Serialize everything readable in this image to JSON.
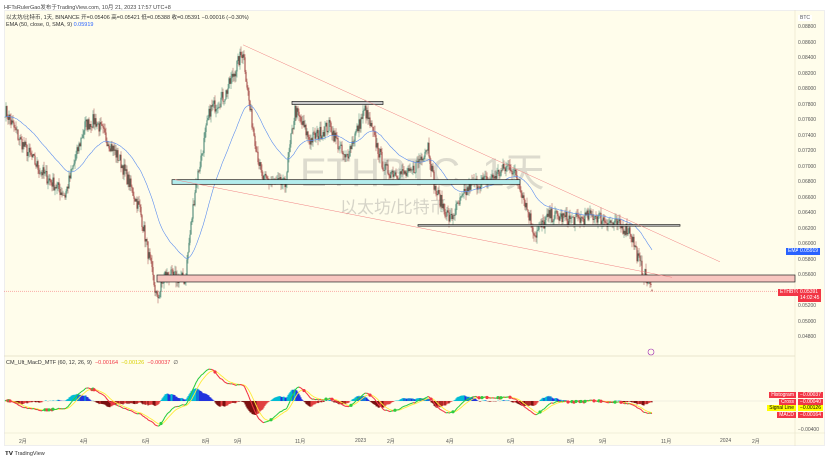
{
  "header": {
    "text": "HFTsRulerGao发布于TradingView.com, 10月 21, 2023 17:57 UTC+8"
  },
  "legend": {
    "line1": "以太坊/比特币, 1天, BINANCE  开=0.05406  高=0.05421  低=0.05388  收=0.05391  −0.00016 (−0.30%)",
    "ema_label": "EMA (50, close, 0, SMA, 9)",
    "ema_value": "0.05919"
  },
  "watermark": {
    "symbol": "ETHBTC, 1天",
    "name": "以太坊/比特币"
  },
  "macd_legend": {
    "label": "CM_Ult_MacD_MTF (60, 12, 26, 9)",
    "v1": "−0.00164",
    "v2": "−0.00126",
    "v3": "−0.00037",
    "extra": "∅"
  },
  "price_axis": {
    "unit": "BTC",
    "labels": [
      "0.08800",
      "0.08600",
      "0.08400",
      "0.08200",
      "0.08000",
      "0.07800",
      "0.07600",
      "0.07400",
      "0.07200",
      "0.07000",
      "0.06800",
      "0.06600",
      "0.06400",
      "0.06200",
      "0.06000",
      "0.05800",
      "0.05600",
      "0.05200",
      "0.05000",
      "0.04800"
    ],
    "label_values": [
      0.088,
      0.086,
      0.084,
      0.082,
      0.08,
      0.078,
      0.076,
      0.074,
      0.072,
      0.07,
      0.068,
      0.066,
      0.064,
      0.062,
      0.06,
      0.058,
      0.056,
      0.052,
      0.05,
      0.048
    ]
  },
  "tags": {
    "ema_name": "EMA",
    "ema_value": "0.05919",
    "sym_name": "ETHBTC",
    "sym_value": "0.05391",
    "countdown": "14:02:45"
  },
  "macd_tags": [
    {
      "name": "Histogram",
      "value": "−0.00037",
      "color": "#f23645"
    },
    {
      "name": "Cross",
      "value": "−0.00040",
      "color": "#f23645"
    },
    {
      "name": "Signal Line",
      "value": "−0.00126",
      "color": "#ffff00"
    },
    {
      "name": "MACD",
      "value": "−0.00164",
      "color": "#f23645"
    }
  ],
  "macd_axis_label": "−0.00400",
  "time_axis": [
    {
      "label": "2月",
      "day": 17
    },
    {
      "label": "4月",
      "day": 78
    },
    {
      "label": "6月",
      "day": 140
    },
    {
      "label": "8月",
      "day": 200
    },
    {
      "label": "9月",
      "day": 232
    },
    {
      "label": "11月",
      "day": 293
    },
    {
      "label": "2023",
      "day": 353
    },
    {
      "label": "2月",
      "day": 385
    },
    {
      "label": "4月",
      "day": 444
    },
    {
      "label": "6月",
      "day": 505
    },
    {
      "label": "8月",
      "day": 565
    },
    {
      "label": "9月",
      "day": 597
    },
    {
      "label": "11月",
      "day": 659
    },
    {
      "label": "2024",
      "day": 718
    },
    {
      "label": "2月",
      "day": 750
    }
  ],
  "footer": {
    "brand": "TradingView"
  },
  "colors": {
    "up": "#1e6b57",
    "down": "#8c1c1c",
    "ema": "#5b8def",
    "bg": "#fffdeb"
  },
  "chart_data": {
    "type": "candlestick",
    "symbol": "ETHBTC",
    "interval": "1D",
    "keypoints_day_price": [
      [
        0,
        0.0773
      ],
      [
        15,
        0.0734
      ],
      [
        35,
        0.0695
      ],
      [
        60,
        0.0663
      ],
      [
        80,
        0.0753
      ],
      [
        90,
        0.076
      ],
      [
        115,
        0.0708
      ],
      [
        135,
        0.0644
      ],
      [
        152,
        0.0528
      ],
      [
        160,
        0.056
      ],
      [
        180,
        0.0554
      ],
      [
        190,
        0.067
      ],
      [
        205,
        0.0773
      ],
      [
        220,
        0.0792
      ],
      [
        238,
        0.085
      ],
      [
        245,
        0.0773
      ],
      [
        257,
        0.0683
      ],
      [
        280,
        0.0676
      ],
      [
        290,
        0.0773
      ],
      [
        305,
        0.0734
      ],
      [
        325,
        0.0753
      ],
      [
        340,
        0.0708
      ],
      [
        360,
        0.0773
      ],
      [
        380,
        0.0695
      ],
      [
        405,
        0.0689
      ],
      [
        423,
        0.0728
      ],
      [
        430,
        0.067
      ],
      [
        445,
        0.0631
      ],
      [
        465,
        0.0676
      ],
      [
        485,
        0.0683
      ],
      [
        505,
        0.0702
      ],
      [
        515,
        0.0676
      ],
      [
        530,
        0.0612
      ],
      [
        545,
        0.0637
      ],
      [
        570,
        0.0631
      ],
      [
        590,
        0.0637
      ],
      [
        610,
        0.0625
      ],
      [
        625,
        0.0618
      ],
      [
        635,
        0.0573
      ],
      [
        647,
        0.05391
      ]
    ],
    "last": {
      "open": 0.05406,
      "high": 0.05421,
      "low": 0.05388,
      "close": 0.05391
    },
    "ema_period": 50,
    "drawings": {
      "rects": [
        {
          "d1": 287,
          "d2": 378,
          "p1": 0.0784,
          "p2": 0.078,
          "fill": "#c9c9c9"
        },
        {
          "d1": 167,
          "d2": 515,
          "p1": 0.0683,
          "p2": 0.0677,
          "fill": "#b3ecec"
        },
        {
          "d1": 413,
          "d2": 675,
          "p1": 0.0625,
          "p2": 0.0623,
          "fill": "#c9c9c9"
        },
        {
          "d1": 152,
          "d2": 790,
          "p1": 0.056,
          "p2": 0.0551,
          "fill": "#f8c6c0"
        }
      ],
      "lines": [
        [
          238,
          0.0857,
          715,
          0.0577
        ],
        [
          170,
          0.0683,
          667,
          0.0557
        ]
      ]
    }
  }
}
